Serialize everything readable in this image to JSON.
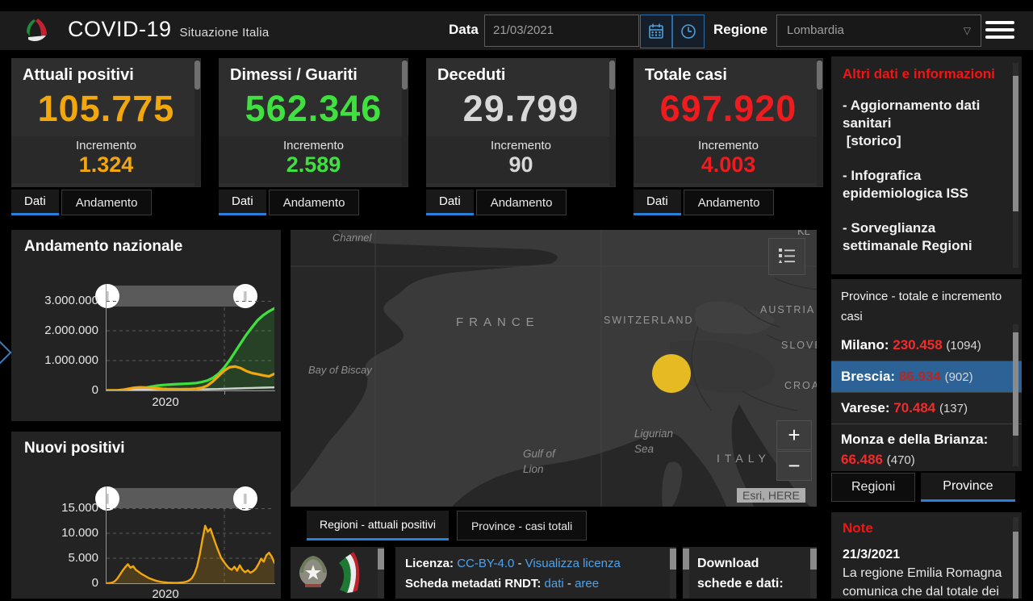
{
  "header": {
    "title": "COVID-19",
    "subtitle": "Situazione Italia",
    "date_label": "Data",
    "date_value": "21/03/2021",
    "region_label": "Regione",
    "region_value": "Lombardia"
  },
  "card_tabs": {
    "dati": "Dati",
    "andamento": "Andamento"
  },
  "cards": [
    {
      "title": "Attuali positivi",
      "value": "105.775",
      "increment_label": "Incremento",
      "increment": "1.324",
      "color": "#f2a70c"
    },
    {
      "title": "Dimessi / Guariti",
      "value": "562.346",
      "increment_label": "Incremento",
      "increment": "2.589",
      "color": "#3fe03f"
    },
    {
      "title": "Deceduti",
      "value": "29.799",
      "increment_label": "Incremento",
      "increment": "90",
      "color": "#d8d8d8"
    },
    {
      "title": "Totale casi",
      "value": "697.920",
      "increment_label": "Incremento",
      "increment": "4.003",
      "color": "#ee1c1e"
    }
  ],
  "chart_data": [
    {
      "type": "line",
      "title": "Andamento nazionale",
      "xlabel": "",
      "ylabel": "",
      "xticks": [
        "2020"
      ],
      "yticks": [
        "3.000.000",
        "2.000.000",
        "1.000.000",
        "0"
      ],
      "ylim": [
        0,
        3000000
      ],
      "grid": true,
      "legend": false,
      "series": [
        {
          "name": "Dimessi / Guariti",
          "color": "#3fe03f",
          "width": 3.2,
          "fill": "rgba(63,224,63,0.16)",
          "values": [
            0,
            500,
            1000,
            3000,
            10000,
            30000,
            60000,
            90000,
            130000,
            160000,
            180000,
            195000,
            205000,
            215000,
            225000,
            235000,
            250000,
            280000,
            330000,
            420000,
            560000,
            760000,
            1010000,
            1300000,
            1590000,
            1870000,
            2120000,
            2350000,
            2520000,
            2650000,
            2750000
          ]
        },
        {
          "name": "Deceduti",
          "color": "#d0d0d0",
          "width": 2.4,
          "values": [
            0,
            0,
            2000,
            8000,
            16000,
            24000,
            29000,
            32000,
            33500,
            34300,
            34800,
            35100,
            35300,
            35500,
            35800,
            36200,
            37000,
            38500,
            41000,
            45000,
            50000,
            56000,
            62000,
            68000,
            74000,
            79000,
            84000,
            89000,
            94000,
            99000,
            103000
          ]
        },
        {
          "name": "Attuali positivi",
          "color": "#f2a70c",
          "width": 3.2,
          "values": [
            0,
            2000,
            8000,
            25000,
            60000,
            91000,
            105000,
            100000,
            88000,
            70000,
            55000,
            46000,
            42000,
            40000,
            42000,
            48000,
            60000,
            90000,
            160000,
            300000,
            480000,
            660000,
            780000,
            800000,
            745000,
            650000,
            580000,
            545000,
            505000,
            470000,
            556000
          ]
        }
      ]
    },
    {
      "type": "line",
      "title": "Nuovi positivi",
      "xlabel": "",
      "ylabel": "",
      "xticks": [
        "2020"
      ],
      "yticks": [
        "15.000",
        "10.000",
        "5.000",
        "0"
      ],
      "ylim": [
        0,
        15000
      ],
      "grid": true,
      "legend": false,
      "series": [
        {
          "name": "Nuovi positivi",
          "color": "#f2a70c",
          "width": 2.4,
          "fill": "rgba(240,166,12,0.2)",
          "values": [
            0,
            40,
            120,
            350,
            900,
            1700,
            2500,
            3200,
            3800,
            3100,
            3400,
            2700,
            2300,
            1900,
            1600,
            1300,
            1000,
            800,
            600,
            450,
            320,
            230,
            170,
            130,
            110,
            95,
            90,
            105,
            140,
            200,
            320,
            550,
            1000,
            1900,
            3400,
            5800,
            8800,
            11500,
            10300,
            10900,
            9300,
            7800,
            6400,
            5100,
            4300,
            3600,
            3000,
            2700,
            3300,
            2500,
            3600,
            2700,
            2200,
            2600,
            2100,
            2400,
            2900,
            3800,
            4900,
            4300,
            5600,
            6100,
            5300,
            4100
          ]
        }
      ]
    }
  ],
  "map": {
    "labels": {
      "channel": "Channel",
      "corner": "KL",
      "france": "FRANCE",
      "switzerland": "SWITZERLAND",
      "austria": "AUSTRIA",
      "slovenia": "SLOVENIA",
      "croatia": "CROATIA",
      "italy": "ITALY",
      "bay_of_biscay": "Bay of Biscay",
      "ligurian_sea": "Ligurian\nSea",
      "gulf_of_lion": "Gulf of\nLion"
    },
    "zoom_in": "+",
    "zoom_out": "−",
    "attribution": "Esri, HERE",
    "tabs": [
      {
        "label": "Regioni - attuali positivi",
        "active": true
      },
      {
        "label": "Province - casi totali",
        "active": false
      }
    ]
  },
  "license": {
    "licenza_label": "Licenza:",
    "cc_link": "CC-BY-4.0",
    "dash": "-",
    "view_link": "Visualizza licenza",
    "metadata_label": "Scheda metadati RNDT:",
    "dati_link": "dati",
    "aree_link": "aree",
    "download_label": "Download schede e dati:"
  },
  "right": {
    "info_title": "Altri dati e informazioni",
    "links": [
      {
        "text": "- Aggiornamento dati sanitari\n [storico]"
      },
      {
        "text": "- Infografica epidemiologica ISS"
      },
      {
        "text": "- Sorveglianza settimanale Regioni"
      }
    ],
    "province_header": "Province - totale e incremento casi",
    "provinces": [
      {
        "name": "Milano:",
        "total": "230.458",
        "total_color": "#f42a2a",
        "increment": "(1094)",
        "selected": false
      },
      {
        "name": "Brescia:",
        "total": "86.934",
        "total_color": "#b02a24",
        "increment": "(902)",
        "selected": true
      },
      {
        "name": "Varese:",
        "total": "70.484",
        "total_color": "#f42a2a",
        "increment": "(137)",
        "selected": false
      },
      {
        "name": "Monza e della Brianza:",
        "total": "66.486",
        "total_color": "#f42a2a",
        "increment": "(470)",
        "selected": false
      }
    ],
    "tabs": [
      {
        "label": "Regioni",
        "active": false
      },
      {
        "label": "Province",
        "active": true
      }
    ],
    "note_title": "Note",
    "note_date": "21/3/2021",
    "note_text": "La regione Emilia Romagna comunica che dal totale dei"
  }
}
